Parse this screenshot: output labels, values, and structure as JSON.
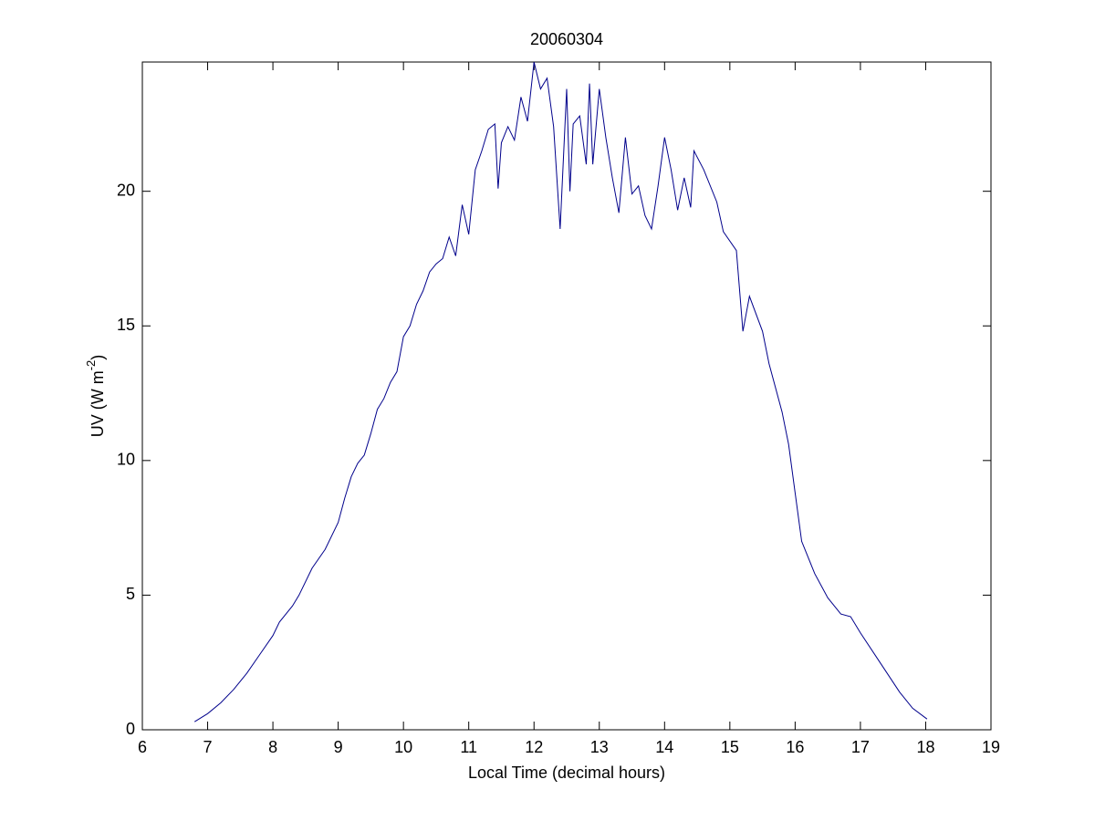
{
  "chart_data": {
    "type": "line",
    "title": "20060304",
    "xlabel": "Local Time (decimal hours)",
    "ylabel": [
      "UV (W m",
      "-2",
      ")"
    ],
    "x": [
      6.8,
      7.0,
      7.2,
      7.4,
      7.6,
      7.8,
      8.0,
      8.1,
      8.3,
      8.4,
      8.6,
      8.8,
      9.0,
      9.1,
      9.2,
      9.3,
      9.4,
      9.5,
      9.6,
      9.7,
      9.8,
      9.9,
      10.0,
      10.1,
      10.2,
      10.3,
      10.4,
      10.5,
      10.6,
      10.7,
      10.8,
      10.9,
      11.0,
      11.1,
      11.2,
      11.3,
      11.4,
      11.45,
      11.5,
      11.6,
      11.7,
      11.8,
      11.9,
      12.0,
      12.1,
      12.2,
      12.3,
      12.4,
      12.5,
      12.55,
      12.6,
      12.7,
      12.8,
      12.85,
      12.9,
      13.0,
      13.1,
      13.2,
      13.3,
      13.4,
      13.5,
      13.6,
      13.7,
      13.8,
      13.9,
      14.0,
      14.1,
      14.2,
      14.3,
      14.4,
      14.45,
      14.6,
      14.8,
      14.9,
      15.1,
      15.2,
      15.3,
      15.5,
      15.6,
      15.8,
      15.9,
      16.0,
      16.1,
      16.3,
      16.5,
      16.7,
      16.85,
      17.0,
      17.3,
      17.6,
      17.8,
      18.02
    ],
    "values": [
      0.3,
      0.6,
      1.0,
      1.5,
      2.1,
      2.8,
      3.5,
      4.0,
      4.6,
      5.0,
      6.0,
      6.7,
      7.7,
      8.6,
      9.4,
      9.9,
      10.2,
      11.0,
      11.9,
      12.3,
      12.9,
      13.3,
      14.6,
      15.0,
      15.8,
      16.3,
      17.0,
      17.3,
      17.5,
      18.3,
      17.6,
      19.5,
      18.4,
      20.8,
      21.5,
      22.3,
      22.5,
      20.1,
      21.8,
      22.4,
      21.9,
      23.5,
      22.6,
      24.8,
      23.8,
      24.2,
      22.4,
      18.6,
      23.8,
      20.0,
      22.5,
      22.8,
      21.0,
      24.0,
      21.0,
      23.8,
      22.0,
      20.5,
      19.2,
      22.0,
      19.9,
      20.2,
      19.1,
      18.6,
      20.2,
      22.0,
      20.8,
      19.3,
      20.5,
      19.4,
      21.5,
      20.8,
      19.6,
      18.5,
      17.8,
      14.8,
      16.1,
      14.8,
      13.6,
      11.8,
      10.6,
      8.8,
      7.0,
      5.8,
      4.9,
      4.3,
      4.2,
      3.6,
      2.5,
      1.4,
      0.8,
      0.4
    ],
    "color": "#00008b",
    "xlim": [
      6,
      19
    ],
    "xticks": [
      6,
      7,
      8,
      9,
      10,
      11,
      12,
      13,
      14,
      15,
      16,
      17,
      18,
      19
    ],
    "ylim": [
      0,
      24.8
    ],
    "yticks": [
      0,
      5,
      10,
      15,
      20
    ]
  }
}
